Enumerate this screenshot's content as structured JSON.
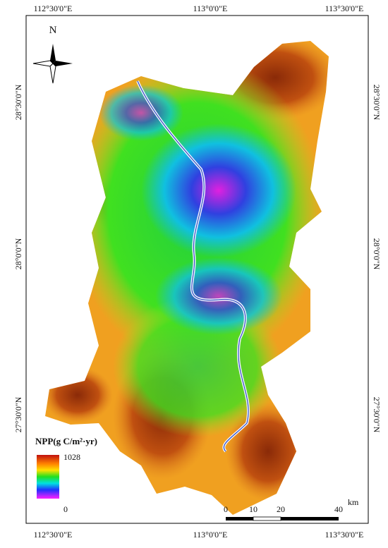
{
  "graticule": {
    "top": [
      "112°30'0\"E",
      "113°0'0\"E",
      "113°30'0\"E"
    ],
    "bottom": [
      "112°30'0\"E",
      "113°0'0\"E",
      "113°30'0\"E"
    ],
    "left": [
      "28°30'0\"N",
      "28°0'0\"N",
      "27°30'0\"N"
    ],
    "right": [
      "28°30'0\"N",
      "28°0'0\"N",
      "27°30'0\"N"
    ]
  },
  "north_arrow": "N",
  "legend": {
    "title": "NPP(g C/m²·yr)",
    "max": "1028",
    "min": "0"
  },
  "scale_bar": {
    "labels": [
      "0",
      "10",
      "20",
      "40"
    ],
    "unit": "km"
  }
}
